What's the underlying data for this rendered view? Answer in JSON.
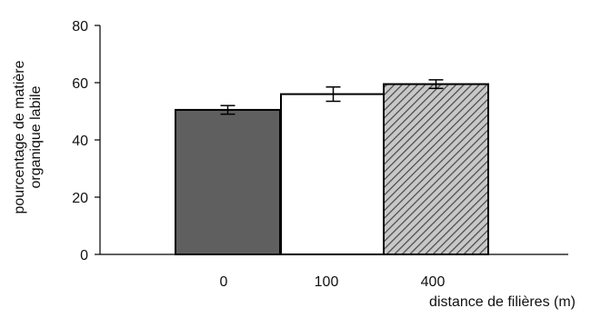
{
  "chart_data": {
    "type": "bar",
    "title": "",
    "xlabel": "distance de filières (m)",
    "ylabel_lines": [
      "pourcentage de matière",
      "organique labile"
    ],
    "categories": [
      "0",
      "100",
      "400"
    ],
    "values": [
      50.5,
      56.0,
      59.5
    ],
    "errors": [
      1.5,
      2.5,
      1.5
    ],
    "ylim": [
      0,
      80
    ],
    "yticks": [
      0,
      20,
      40,
      60,
      80
    ],
    "fills": [
      "dark-grey",
      "white",
      "diagonal-hatch"
    ],
    "colors": {
      "dark_grey": "#5f5f5f",
      "outline": "#000000",
      "hatch_bg": "#c8c8c8",
      "hatch_line": "#4a4a4a"
    },
    "grid": false,
    "legend": "none"
  }
}
